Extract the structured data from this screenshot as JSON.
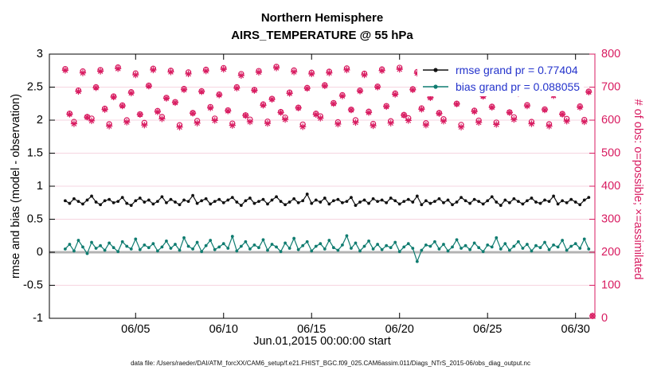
{
  "figure": {
    "title_line1": "Northern Hemisphere",
    "title_line2": "AIRS_TEMPERATURE @ 55 hPa",
    "xlabel": "Jun.01,2015 00:00:00 start",
    "ylabel_left": "rmse and bias (model - observation)",
    "ylabel_right": "# of obs: o=possible; ×=assimilated",
    "caption": "data file: /Users/raeder/DAI/ATM_forcXX/CAM6_setup/f.e21.FHIST_BGC.f09_025.CAM6assim.011/Diags_NTrS_2015-06/obs_diag_output.nc",
    "legend": [
      {
        "label": "rmse grand pr = 0.77404",
        "series": "rmse"
      },
      {
        "label": "bias grand pr = 0.088055",
        "series": "bias"
      }
    ]
  },
  "colors": {
    "rmse": "#111111",
    "bias": "#0f7c70",
    "obs": "#d81b60",
    "legend_text": "#2433cc",
    "zero_line": "#b3b3b3",
    "grid": "#f6d5e0",
    "axis": "#000000"
  },
  "chart_data": {
    "type": "line",
    "title": "Northern Hemisphere — AIRS_TEMPERATURE @ 55 hPa",
    "xlabel": "Jun.01,2015 00:00:00 start",
    "ylabel_left": "rmse and bias (model - observation)",
    "ylabel_right": "# of obs: o=possible; ×=assimilated",
    "legend_position": "top-right",
    "grid": "horizontal-light",
    "x": {
      "start": 1.0,
      "step": 0.25,
      "count": 120,
      "units": "day of June 2015"
    },
    "xlim": [
      0.1,
      31.1
    ],
    "ylim_left": [
      -1,
      3
    ],
    "ylim_right": [
      0,
      800
    ],
    "xticks": [
      {
        "value": 5,
        "label": "06/05"
      },
      {
        "value": 10,
        "label": "06/10"
      },
      {
        "value": 15,
        "label": "06/15"
      },
      {
        "value": 20,
        "label": "06/20"
      },
      {
        "value": 25,
        "label": "06/25"
      },
      {
        "value": 30,
        "label": "06/30"
      }
    ],
    "yticks_left": [
      {
        "value": -1,
        "label": "-1"
      },
      {
        "value": -0.5,
        "label": "-0.5"
      },
      {
        "value": 0,
        "label": "0"
      },
      {
        "value": 0.5,
        "label": "0.5"
      },
      {
        "value": 1,
        "label": "1"
      },
      {
        "value": 1.5,
        "label": "1.5"
      },
      {
        "value": 2,
        "label": "2"
      },
      {
        "value": 2.5,
        "label": "2.5"
      },
      {
        "value": 3,
        "label": "3"
      }
    ],
    "yticks_right": [
      {
        "value": 0,
        "label": "0"
      },
      {
        "value": 100,
        "label": "100"
      },
      {
        "value": 200,
        "label": "200"
      },
      {
        "value": 300,
        "label": "300"
      },
      {
        "value": 400,
        "label": "400"
      },
      {
        "value": 500,
        "label": "500"
      },
      {
        "value": 600,
        "label": "600"
      },
      {
        "value": 700,
        "label": "700"
      },
      {
        "value": 800,
        "label": "800"
      }
    ],
    "zero_line": 0,
    "corner_marker_right_axis_zero": true,
    "series": [
      {
        "name": "rmse",
        "axis": "left",
        "marker": "dot-line",
        "grand_value": 0.77404,
        "values": [
          0.78,
          0.74,
          0.81,
          0.77,
          0.73,
          0.79,
          0.85,
          0.76,
          0.72,
          0.78,
          0.8,
          0.75,
          0.77,
          0.83,
          0.74,
          0.71,
          0.78,
          0.82,
          0.76,
          0.79,
          0.73,
          0.77,
          0.84,
          0.75,
          0.8,
          0.76,
          0.72,
          0.79,
          0.77,
          0.86,
          0.74,
          0.78,
          0.81,
          0.73,
          0.77,
          0.8,
          0.75,
          0.79,
          0.83,
          0.76,
          0.71,
          0.78,
          0.82,
          0.74,
          0.77,
          0.8,
          0.73,
          0.79,
          0.84,
          0.77,
          0.72,
          0.76,
          0.81,
          0.75,
          0.78,
          0.88,
          0.74,
          0.79,
          0.76,
          0.82,
          0.73,
          0.78,
          0.8,
          0.75,
          0.77,
          0.83,
          0.71,
          0.76,
          0.79,
          0.74,
          0.81,
          0.77,
          0.79,
          0.75,
          0.82,
          0.78,
          0.73,
          0.77,
          0.8,
          0.76,
          0.85,
          0.72,
          0.78,
          0.74,
          0.77,
          0.81,
          0.75,
          0.79,
          0.72,
          0.76,
          0.83,
          0.78,
          0.74,
          0.8,
          0.77,
          0.73,
          0.78,
          0.84,
          0.76,
          0.71,
          0.79,
          0.75,
          0.81,
          0.77,
          0.73,
          0.78,
          0.82,
          0.76,
          0.74,
          0.79,
          0.77,
          0.85,
          0.73,
          0.78,
          0.75,
          0.8,
          0.76,
          0.72,
          0.79,
          0.83
        ]
      },
      {
        "name": "bias",
        "axis": "left",
        "marker": "dot-line",
        "grand_value": 0.088055,
        "values": [
          0.05,
          0.12,
          0.02,
          0.18,
          0.08,
          -0.02,
          0.15,
          0.06,
          0.1,
          0.03,
          0.14,
          0.07,
          0.01,
          0.16,
          0.09,
          0.05,
          0.2,
          0.04,
          0.11,
          0.07,
          0.13,
          0.02,
          0.08,
          0.17,
          0.06,
          0.12,
          0.03,
          0.22,
          0.09,
          0.05,
          0.15,
          0.01,
          0.1,
          0.18,
          0.04,
          0.08,
          0.13,
          0.06,
          0.24,
          0.02,
          0.09,
          0.16,
          0.05,
          0.11,
          0.07,
          0.19,
          0.03,
          0.12,
          0.08,
          0.01,
          0.14,
          0.06,
          0.21,
          0.04,
          0.1,
          0.16,
          0.02,
          0.09,
          0.13,
          0.05,
          0.18,
          0.07,
          0.03,
          0.11,
          0.25,
          0.06,
          0.14,
          0.02,
          0.09,
          0.17,
          0.05,
          0.12,
          0.04,
          0.1,
          0.07,
          0.15,
          0.01,
          0.08,
          0.13,
          0.06,
          -0.14,
          0.03,
          0.11,
          0.09,
          0.16,
          0.05,
          0.12,
          0.02,
          0.08,
          0.19,
          0.06,
          0.1,
          0.04,
          0.14,
          0.07,
          0.01,
          0.11,
          0.08,
          0.22,
          0.05,
          0.13,
          0.03,
          0.09,
          0.16,
          0.06,
          0.12,
          0.02,
          0.1,
          0.07,
          0.15,
          0.04,
          0.11,
          0.08,
          0.18,
          0.03,
          0.09,
          0.13,
          0.06,
          0.2,
          0.05
        ]
      },
      {
        "name": "possible",
        "axis": "right",
        "marker": "o",
        "values": [
          755,
          620,
          595,
          690,
          748,
          610,
          605,
          700,
          752,
          635,
          588,
          672,
          760,
          645,
          600,
          685,
          742,
          618,
          592,
          705,
          756,
          628,
          610,
          668,
          750,
          655,
          585,
          695,
          745,
          622,
          598,
          688,
          753,
          640,
          605,
          678,
          758,
          630,
          590,
          700,
          740,
          615,
          602,
          692,
          749,
          648,
          596,
          665,
          762,
          625,
          608,
          684,
          751,
          638,
          587,
          698,
          744,
          620,
          612,
          706,
          747,
          652,
          594,
          676,
          757,
          632,
          600,
          690,
          741,
          626,
          589,
          702,
          754,
          643,
          597,
          681,
          759,
          616,
          606,
          694,
          746,
          636,
          591,
          670,
          752,
          622,
          603,
          699,
          743,
          650,
          586,
          686,
          761,
          629,
          599,
          674,
          749,
          641,
          593,
          703,
          755,
          624,
          609,
          683,
          739,
          646,
          595,
          691,
          763,
          633,
          588,
          677,
          750,
          619,
          604,
          696,
          745,
          642,
          601,
          687
        ]
      },
      {
        "name": "assimilated",
        "axis": "right",
        "marker": "asterisk",
        "values": [
          751,
          618,
          589,
          687,
          743,
          609,
          598,
          698,
          748,
          632,
          582,
          670,
          756,
          643,
          594,
          682,
          737,
          617,
          585,
          703,
          752,
          625,
          604,
          666,
          746,
          653,
          579,
          692,
          740,
          621,
          591,
          686,
          749,
          637,
          599,
          676,
          754,
          628,
          584,
          697,
          735,
          614,
          595,
          690,
          745,
          645,
          590,
          663,
          758,
          623,
          602,
          681,
          746,
          637,
          580,
          696,
          740,
          617,
          606,
          704,
          743,
          650,
          588,
          673,
          752,
          631,
          593,
          688,
          737,
          623,
          583,
          700,
          750,
          641,
          591,
          678,
          754,
          615,
          599,
          692,
          742,
          633,
          585,
          668,
          748,
          620,
          597,
          696,
          738,
          649,
          579,
          684,
          757,
          626,
          593,
          672,
          745,
          639,
          587,
          700,
          750,
          623,
          602,
          681,
          735,
          643,
          589,
          689,
          759,
          631,
          582,
          674,
          745,
          618,
          597,
          694,
          741,
          639,
          595,
          685
        ]
      }
    ]
  }
}
